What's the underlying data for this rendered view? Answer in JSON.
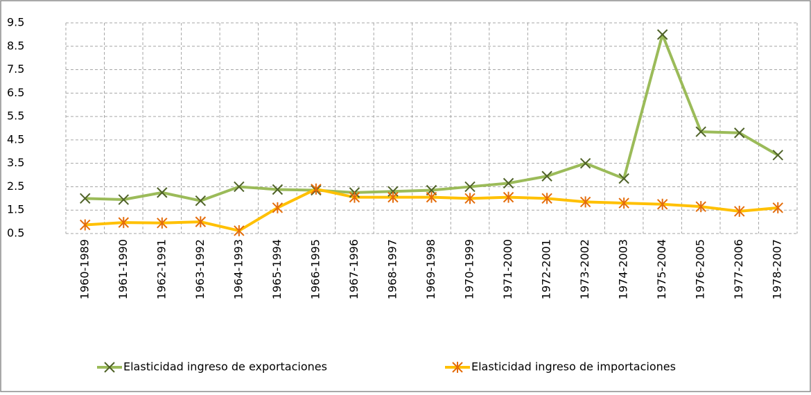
{
  "chart_data": {
    "type": "line",
    "categories": [
      "1960-1989",
      "1961-1990",
      "1962-1991",
      "1963-1992",
      "1964-1993",
      "1965-1994",
      "1966-1995",
      "1967-1996",
      "1968-1997",
      "1969-1998",
      "1970-1999",
      "1971-2000",
      "1972-2001",
      "1973-2002",
      "1974-2003",
      "1975-2004",
      "1976-2005",
      "1977-2006",
      "1978-2007"
    ],
    "series": [
      {
        "name": "Elasticidad ingreso de exportaciones",
        "color": "#9bbb59",
        "marker": "x",
        "marker_color": "#4f6228",
        "values": [
          2.0,
          1.95,
          2.25,
          1.9,
          2.5,
          2.38,
          2.35,
          2.25,
          2.3,
          2.35,
          2.5,
          2.65,
          2.95,
          3.5,
          2.85,
          9.0,
          4.85,
          4.8,
          3.85
        ]
      },
      {
        "name": "Elasticidad ingreso de importaciones",
        "color": "#ffc000",
        "marker": "asterisk",
        "marker_color": "#e46c0a",
        "values": [
          0.87,
          0.97,
          0.95,
          1.0,
          0.62,
          1.6,
          2.4,
          2.05,
          2.05,
          2.05,
          2.0,
          2.05,
          2.0,
          1.85,
          1.8,
          1.75,
          1.65,
          1.45,
          1.6
        ]
      }
    ],
    "ylim": [
      0.5,
      9.5
    ],
    "yticks": [
      0.5,
      1.5,
      2.5,
      3.5,
      4.5,
      5.5,
      6.5,
      7.5,
      8.5,
      9.5
    ],
    "grid": true,
    "legend": "bottom"
  }
}
